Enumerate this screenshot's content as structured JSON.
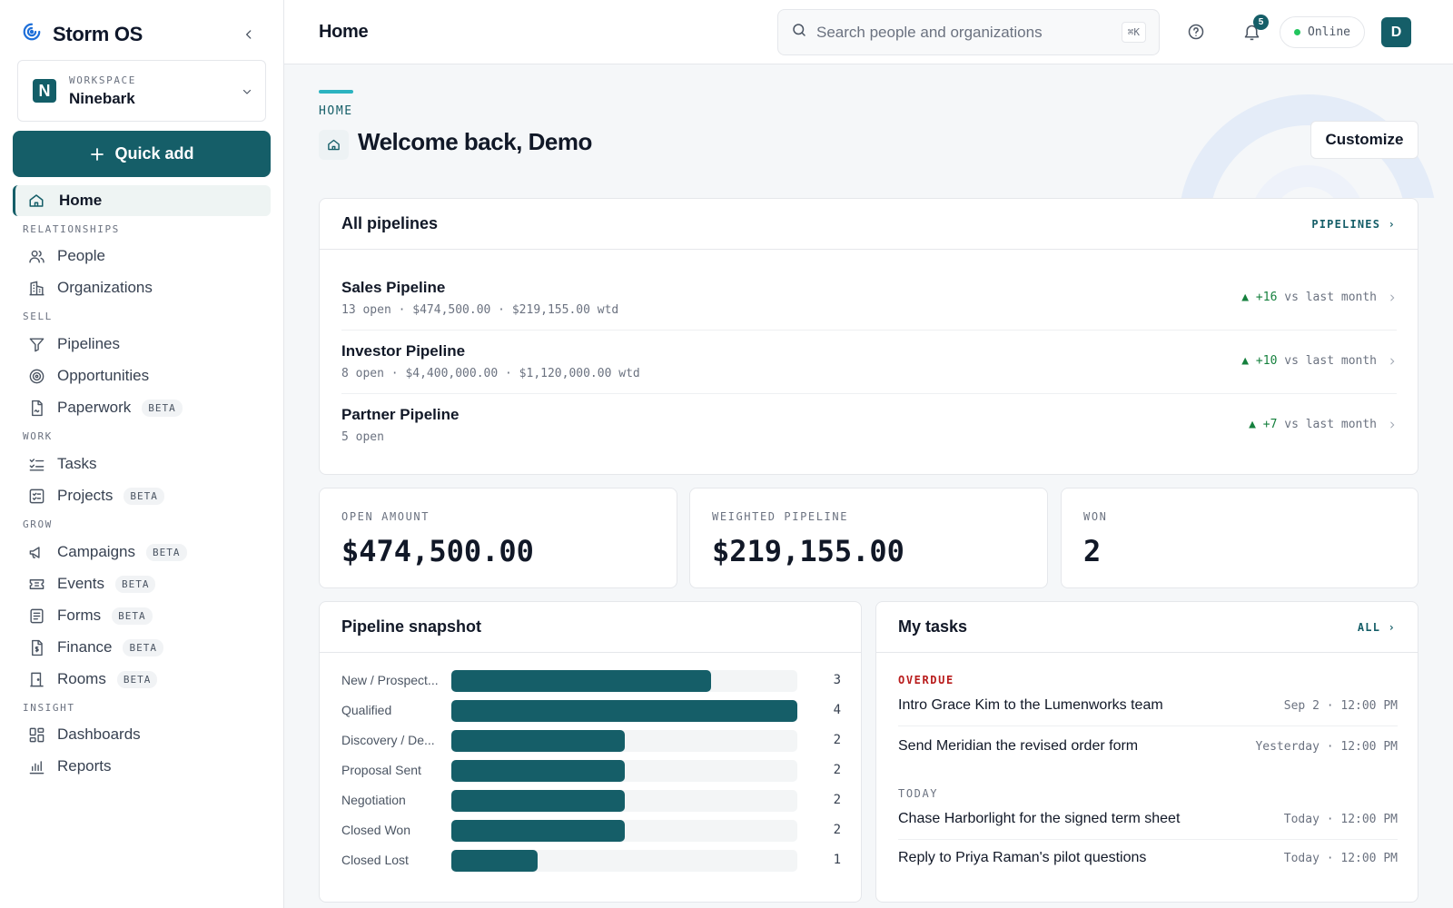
{
  "app": {
    "name": "Storm OS"
  },
  "workspace": {
    "label": "WORKSPACE",
    "name": "Ninebark",
    "logo_letter": "N"
  },
  "sidebar": {
    "quick_add": "Quick add",
    "home": "Home",
    "beta_label": "BETA",
    "sections": {
      "relationships": "RELATIONSHIPS",
      "sell": "SELL",
      "work": "WORK",
      "grow": "GROW",
      "insight": "INSIGHT"
    },
    "items": {
      "people": "People",
      "organizations": "Organizations",
      "pipelines": "Pipelines",
      "opportunities": "Opportunities",
      "paperwork": "Paperwork",
      "tasks": "Tasks",
      "projects": "Projects",
      "campaigns": "Campaigns",
      "events": "Events",
      "forms": "Forms",
      "finance": "Finance",
      "rooms": "Rooms",
      "dashboards": "Dashboards",
      "reports": "Reports"
    }
  },
  "topbar": {
    "title": "Home",
    "search_placeholder": "Search people and organizations",
    "search_shortcut": "⌘K",
    "notifications_count": "5",
    "status": "Online",
    "avatar_letter": "D"
  },
  "header": {
    "eyebrow": "HOME",
    "welcome": "Welcome back, Demo",
    "customize": "Customize"
  },
  "pipelines": {
    "title": "All pipelines",
    "link": "PIPELINES ›",
    "rows": [
      {
        "name": "Sales Pipeline",
        "meta": "13 open · $474,500.00 · $219,155.00 wtd",
        "trend": "▲ +16",
        "trend_suffix": " vs last month"
      },
      {
        "name": "Investor Pipeline",
        "meta": "8 open · $4,400,000.00 · $1,120,000.00 wtd",
        "trend": "▲ +10",
        "trend_suffix": " vs last month"
      },
      {
        "name": "Partner Pipeline",
        "meta": "5 open",
        "trend": "▲ +7",
        "trend_suffix": " vs last month"
      }
    ]
  },
  "kpis": [
    {
      "label": "OPEN AMOUNT",
      "value": "$474,500.00"
    },
    {
      "label": "WEIGHTED PIPELINE",
      "value": "$219,155.00"
    },
    {
      "label": "WON",
      "value": "2"
    }
  ],
  "snapshot": {
    "title": "Pipeline snapshot",
    "max": 4,
    "stages": [
      {
        "label": "New / Prospect...",
        "count": 3
      },
      {
        "label": "Qualified",
        "count": 4
      },
      {
        "label": "Discovery / De...",
        "count": 2
      },
      {
        "label": "Proposal Sent",
        "count": 2
      },
      {
        "label": "Negotiation",
        "count": 2
      },
      {
        "label": "Closed Won",
        "count": 2
      },
      {
        "label": "Closed Lost",
        "count": 1
      }
    ]
  },
  "tasks": {
    "title": "My tasks",
    "link": "ALL ›",
    "overdue_label": "OVERDUE",
    "today_label": "TODAY",
    "overdue": [
      {
        "title": "Intro Grace Kim to the Lumenworks team",
        "when": "Sep 2 · 12:00 PM"
      },
      {
        "title": "Send Meridian the revised order form",
        "when": "Yesterday · 12:00 PM"
      }
    ],
    "today": [
      {
        "title": "Chase Harborlight for the signed term sheet",
        "when": "Today · 12:00 PM"
      },
      {
        "title": "Reply to Priya Raman's pilot questions",
        "when": "Today · 12:00 PM"
      }
    ]
  },
  "colors": {
    "brand": "#155e68",
    "accent": "#2bb3c0",
    "overdue": "#b91c1c",
    "positive": "#15803d"
  }
}
